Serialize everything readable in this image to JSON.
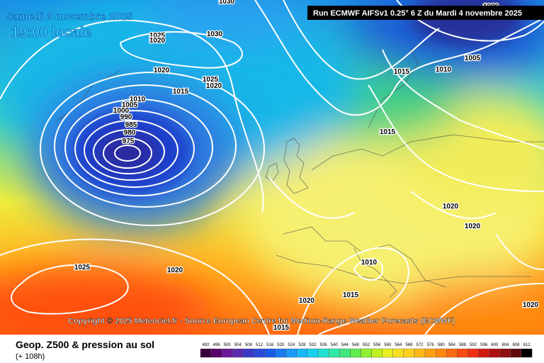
{
  "header": {
    "date": "Samedi 8 novembre 2025",
    "time": "19:00 locale",
    "run": "Run ECMWF AIFSv1 0.25° 6 Z du Mardi 4 novembre 2025"
  },
  "map": {
    "isobar_labels": [
      "1030",
      "1025",
      "1020",
      "1030",
      "1020",
      "1015",
      "1025",
      "1020",
      "1010",
      "1005",
      "1000",
      "990",
      "985",
      "980",
      "975",
      "1015",
      "1010",
      "1005",
      "1000",
      "1015",
      "1020",
      "1020",
      "1025",
      "1020",
      "1010",
      "1015",
      "1020",
      "1015",
      "1020"
    ]
  },
  "copyright": "Copyright © 2025 Meteociel.fr - Source European Centre for Medium-Range Weather Forecasts (ECMWF)",
  "footer": {
    "title": "Geop. Z500 & pression au sol",
    "subtitle": "(+ 108h)",
    "scale": [
      492,
      496,
      500,
      504,
      508,
      512,
      516,
      520,
      524,
      528,
      532,
      536,
      540,
      544,
      548,
      552,
      556,
      560,
      564,
      568,
      572,
      576,
      580,
      584,
      588,
      592,
      596,
      600,
      604,
      608,
      612
    ]
  }
}
